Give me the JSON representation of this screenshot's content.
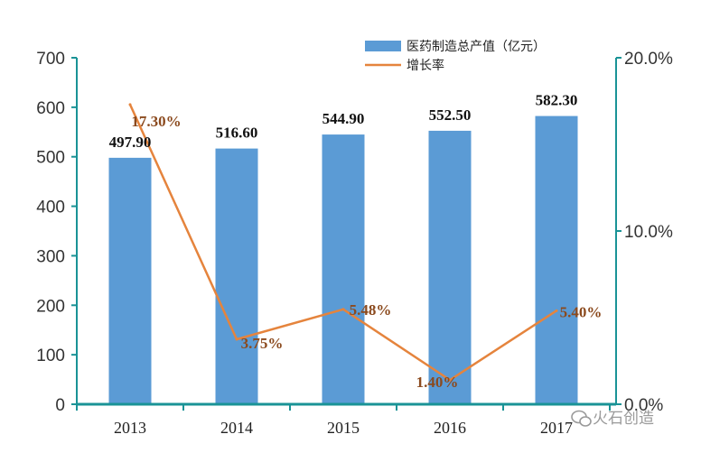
{
  "chart_data": {
    "type": "bar",
    "categories": [
      "2013",
      "2014",
      "2015",
      "2016",
      "2017"
    ],
    "series": [
      {
        "name": "医药制造总产值（亿元）",
        "type": "bar",
        "axis": "left",
        "values": [
          497.9,
          516.6,
          544.9,
          552.5,
          582.3
        ],
        "labels": [
          "497.90",
          "516.60",
          "544.90",
          "552.50",
          "582.30"
        ],
        "color": "#5b9bd5"
      },
      {
        "name": "增长率",
        "type": "line",
        "axis": "right",
        "values": [
          17.3,
          3.75,
          5.48,
          1.4,
          5.4
        ],
        "labels": [
          "17.30%",
          "3.75%",
          "5.48%",
          "1.40%",
          "5.40%"
        ],
        "color": "#e5843d"
      }
    ],
    "ylim_left": [
      0,
      700
    ],
    "yticks_left": [
      "0",
      "100",
      "200",
      "300",
      "400",
      "500",
      "600",
      "700"
    ],
    "ylim_right": [
      0,
      20
    ],
    "yticks_right": [
      "0.0%",
      "10.0%",
      "20.0%"
    ],
    "legend_position": "top-right",
    "axis_color": "#1a9396",
    "label_color": "#8b4a1e",
    "grid": false
  },
  "watermark": {
    "text": "火石创造",
    "icon": "wechat-icon"
  }
}
